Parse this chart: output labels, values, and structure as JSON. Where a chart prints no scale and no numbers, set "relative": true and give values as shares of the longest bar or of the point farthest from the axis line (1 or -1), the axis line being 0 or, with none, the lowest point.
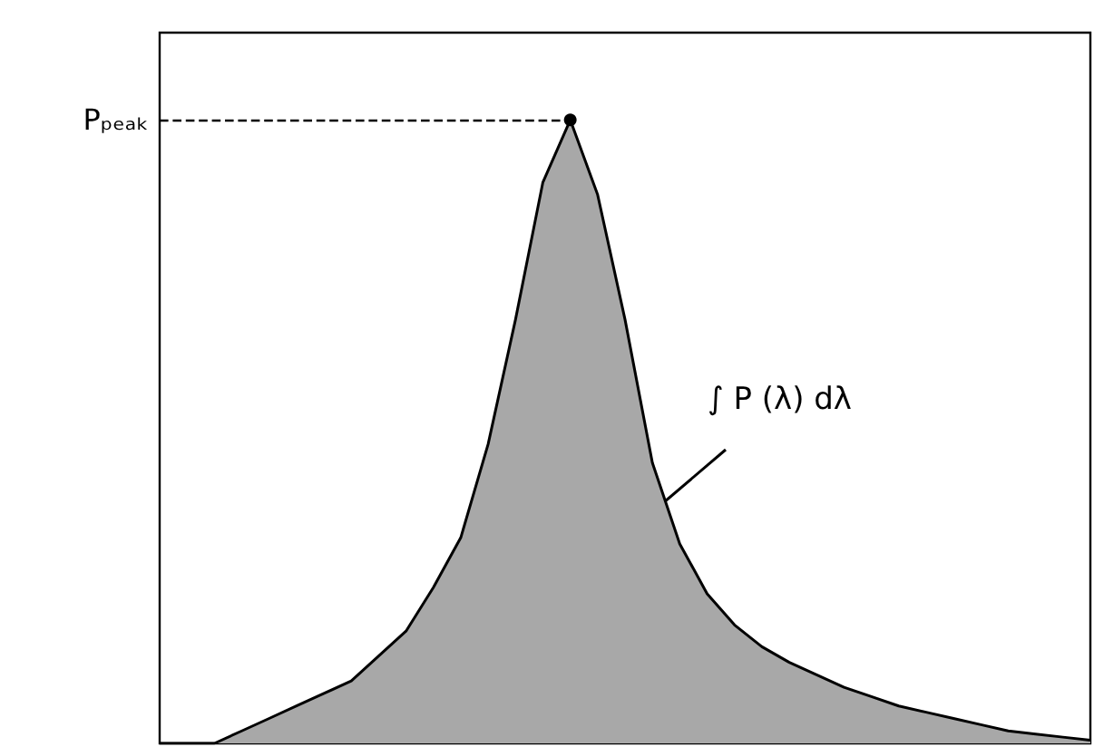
{
  "chart_data": {
    "type": "area",
    "relative": true,
    "categories": [
      null,
      null,
      null,
      null,
      null,
      null,
      null,
      null,
      null,
      null,
      null,
      null,
      null,
      null,
      null,
      null,
      null,
      null,
      null,
      null,
      null,
      null,
      null,
      null,
      null,
      null,
      null,
      null,
      null,
      null,
      null,
      null,
      null,
      null,
      null
    ],
    "series": [
      {
        "color": "#a8a8a8",
        "values": [
          0,
          0,
          0,
          0.02,
          0.04,
          0.06,
          0.08,
          0.1,
          0.14,
          0.18,
          0.25,
          0.33,
          0.48,
          0.68,
          0.9,
          1,
          0.88,
          0.68,
          0.45,
          0.32,
          0.24,
          0.19,
          0.155,
          0.13,
          0.11,
          0.09,
          0.075,
          0.06,
          0.05,
          0.04,
          0.03,
          0.02,
          0.015,
          0.01,
          0.005
        ]
      }
    ],
    "ref_lines": [
      {
        "axis": "y",
        "value": 1,
        "label": "Pₚₑₐₖ",
        "line_style": "dashed",
        "color": "#000000"
      }
    ],
    "annotations": [
      "∫ P (λ) dλ"
    ],
    "marker": "none",
    "grid": false,
    "tick_labels": false
  }
}
